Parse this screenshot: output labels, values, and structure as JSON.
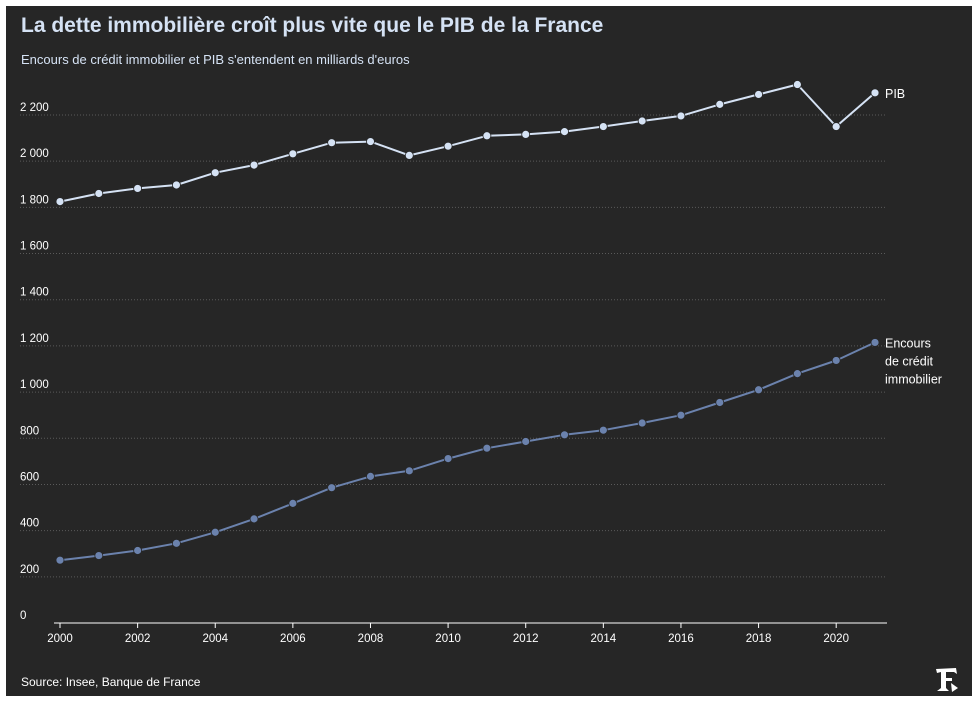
{
  "header": {
    "title": "La dette immobilière croît plus vite que le PIB de la France",
    "subtitle": "Encours de crédit immobilier et PIB s'entendent en milliards d'euros"
  },
  "footer": {
    "source": "Source: Insee, Banque de France",
    "logo_icon": "le-figaro-f-logo"
  },
  "colors": {
    "background": "#262626",
    "pib_line": "#d5e2f4",
    "credit_line": "#6b82ad",
    "grid": "#5a5a5a",
    "text": "#ffffff"
  },
  "chart_data": {
    "type": "line",
    "title": "La dette immobilière croît plus vite que le PIB de la France",
    "subtitle": "Encours de crédit immobilier et PIB s'entendent en milliards d'euros",
    "x": [
      2000,
      2001,
      2002,
      2003,
      2004,
      2005,
      2006,
      2007,
      2008,
      2009,
      2010,
      2011,
      2012,
      2013,
      2014,
      2015,
      2016,
      2017,
      2018,
      2019,
      2020,
      2021
    ],
    "x_tick_labels": [
      "2000",
      "2002",
      "2004",
      "2006",
      "2008",
      "2010",
      "2012",
      "2014",
      "2016",
      "2018",
      "2020"
    ],
    "y_tick_labels": [
      "0",
      "200",
      "400",
      "600",
      "800",
      "1 000",
      "1 200",
      "1 400",
      "1 600",
      "1 800",
      "2 000",
      "2 200"
    ],
    "y_ticks": [
      0,
      200,
      400,
      600,
      800,
      1000,
      1200,
      1400,
      1600,
      1800,
      2000,
      2200
    ],
    "xlim": [
      2000,
      2021
    ],
    "ylim": [
      0,
      2200
    ],
    "grid": "horizontal dotted",
    "legend": "direct labels at line ends",
    "series": [
      {
        "name": "PIB",
        "label_lines": [
          "PIB"
        ],
        "color": "#d5e2f4",
        "values": [
          1825,
          1860,
          1882,
          1897,
          1950,
          1983,
          2032,
          2080,
          2085,
          2025,
          2065,
          2110,
          2116,
          2128,
          2150,
          2174,
          2196,
          2246,
          2289,
          2332,
          2150,
          2296
        ]
      },
      {
        "name": "Encours de crédit immobilier",
        "label_lines": [
          "Encours",
          "de crédit",
          "immobilier"
        ],
        "color": "#6b82ad",
        "values": [
          272,
          292,
          314,
          345,
          393,
          451,
          518,
          586,
          635,
          659,
          712,
          757,
          786,
          815,
          835,
          866,
          900,
          955,
          1010,
          1080,
          1137,
          1215
        ]
      }
    ]
  }
}
